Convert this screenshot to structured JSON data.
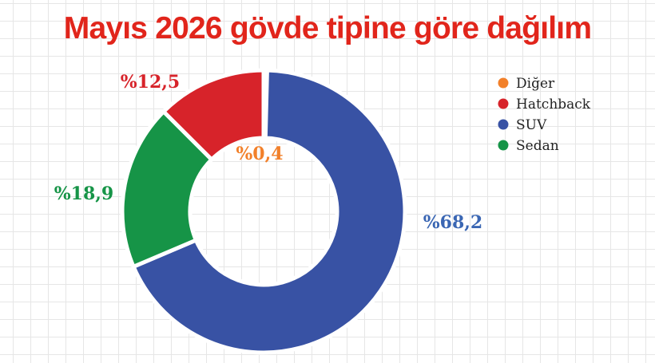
{
  "colors": {
    "title": "#e1251b",
    "Diğer": "#f2802a",
    "Hatchback": "#d7232a",
    "SUV": "#3852a4",
    "Sedan": "#169447",
    "label_SUV": "#3a66b3"
  },
  "chart_data": {
    "type": "pie",
    "style": "donut",
    "title": "Mayıs 2026 gövde tipine göre dağılım",
    "legend_position": "top-right",
    "legend": [
      "Diğer",
      "Hatchback",
      "SUV",
      "Sedan"
    ],
    "slices": [
      {
        "name": "Diğer",
        "value": 0.4,
        "label": "%0,4"
      },
      {
        "name": "SUV",
        "value": 68.2,
        "label": "%68,2"
      },
      {
        "name": "Sedan",
        "value": 18.9,
        "label": "%18,9"
      },
      {
        "name": "Hatchback",
        "value": 12.5,
        "label": "%12,5"
      }
    ]
  }
}
